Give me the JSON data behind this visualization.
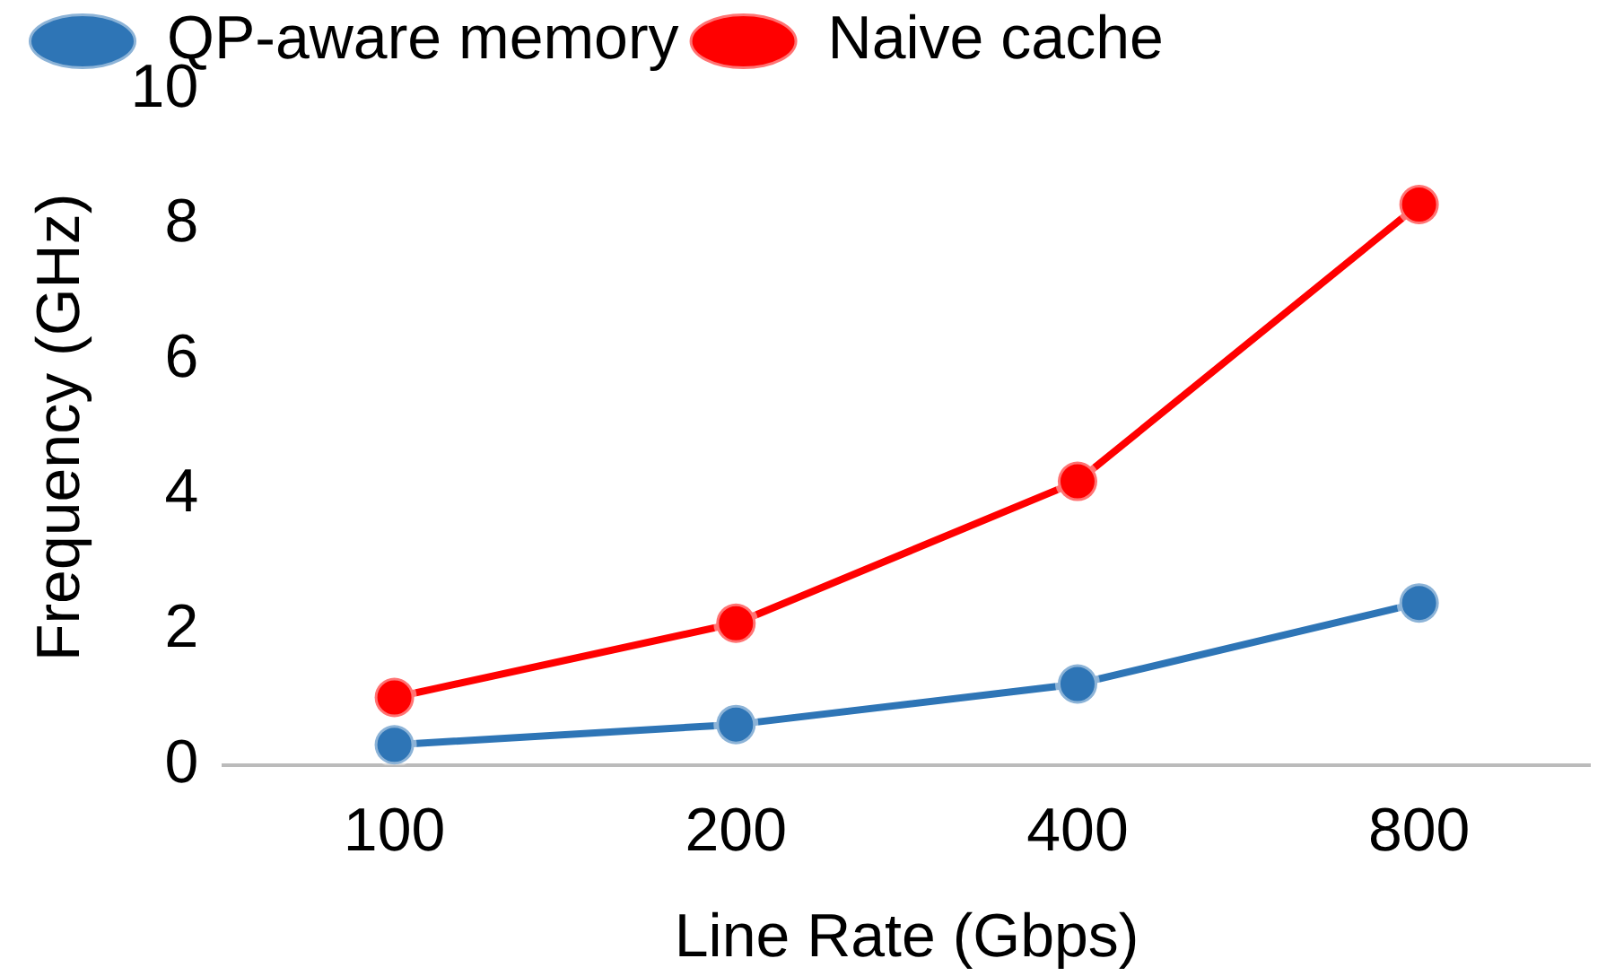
{
  "chart_data": {
    "type": "line",
    "xlabel": "Line Rate (Gbps)",
    "ylabel": "Frequency (GHz)",
    "categories": [
      "100",
      "200",
      "400",
      "800"
    ],
    "series": [
      {
        "name": "QP-aware memory",
        "color": "#2e75b6",
        "values": [
          0.3,
          0.6,
          1.2,
          2.4
        ]
      },
      {
        "name": "Naive cache",
        "color": "#ff0000",
        "values": [
          1.0,
          2.1,
          4.2,
          8.3
        ]
      }
    ],
    "ylim": [
      0,
      10
    ],
    "yticks": [
      0,
      2,
      4,
      6,
      8,
      10
    ],
    "grid": false,
    "legend": "top",
    "marker": "circle",
    "line_style": "solid"
  }
}
